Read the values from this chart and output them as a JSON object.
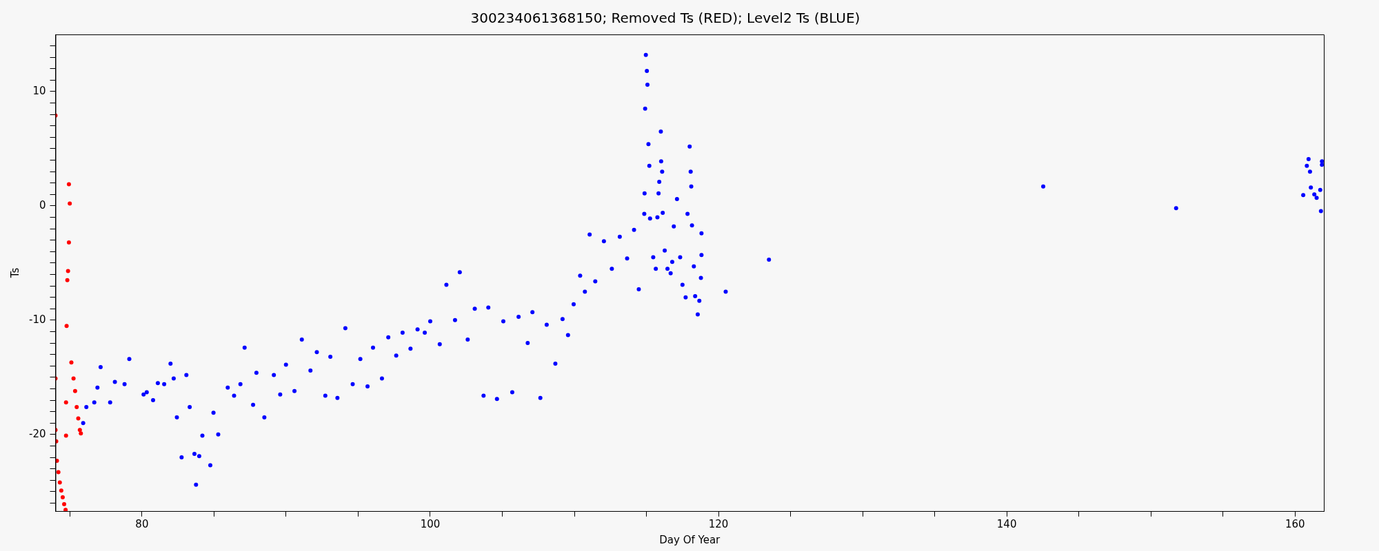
{
  "chart_data": {
    "type": "scatter",
    "title": "300234061368150; Removed Ts (RED); Level2 Ts (BLUE)",
    "xlabel": "Day Of Year",
    "ylabel": "Ts",
    "marker": "circle",
    "xlim": [
      74,
      162
    ],
    "ylim": [
      -26.7,
      15
    ],
    "xticks": [
      {
        "value": 75,
        "label": null
      },
      80,
      {
        "value": 85,
        "label": null
      },
      100,
      {
        "value": 105,
        "label": null
      },
      {
        "value": 90,
        "label": null
      },
      {
        "value": 95,
        "label": null
      },
      120,
      {
        "value": 110,
        "label": null
      },
      {
        "value": 115,
        "label": null
      },
      {
        "value": 125,
        "label": null
      },
      {
        "value": 130,
        "label": null
      },
      {
        "value": 135,
        "label": null
      },
      140,
      {
        "value": 145,
        "label": null
      },
      {
        "value": 150,
        "label": null
      },
      {
        "value": 155,
        "label": null
      },
      160
    ],
    "yticks": [
      {
        "value": -26,
        "label": null
      },
      {
        "value": -25,
        "label": null
      },
      {
        "value": -24,
        "label": null
      },
      {
        "value": -23,
        "label": null
      },
      {
        "value": -22,
        "label": null
      },
      {
        "value": -21,
        "label": null
      },
      -20,
      {
        "value": -19,
        "label": null
      },
      {
        "value": -18,
        "label": null
      },
      {
        "value": -17,
        "label": null
      },
      {
        "value": -16,
        "label": null
      },
      {
        "value": -15,
        "label": null
      },
      {
        "value": -14,
        "label": null
      },
      {
        "value": -13,
        "label": null
      },
      {
        "value": -12,
        "label": null
      },
      {
        "value": -11,
        "label": null
      },
      -10,
      {
        "value": -9,
        "label": null
      },
      {
        "value": -8,
        "label": null
      },
      {
        "value": -7,
        "label": null
      },
      {
        "value": -6,
        "label": null
      },
      {
        "value": -5,
        "label": null
      },
      {
        "value": -4,
        "label": null
      },
      {
        "value": -3,
        "label": null
      },
      {
        "value": -2,
        "label": null
      },
      {
        "value": -1,
        "label": null
      },
      0,
      {
        "value": 1,
        "label": null
      },
      {
        "value": 2,
        "label": null
      },
      {
        "value": 3,
        "label": null
      },
      {
        "value": 4,
        "label": null
      },
      {
        "value": 5,
        "label": null
      },
      {
        "value": 6,
        "label": null
      },
      {
        "value": 7,
        "label": null
      },
      {
        "value": 8,
        "label": null
      },
      {
        "value": 9,
        "label": null
      },
      10,
      {
        "value": 11,
        "label": null
      },
      {
        "value": 12,
        "label": null
      },
      {
        "value": 13,
        "label": null
      },
      {
        "value": 14,
        "label": null
      }
    ],
    "series": [
      {
        "color": "#ff0000",
        "x": [
          74.0,
          74.0,
          74.0,
          74.05,
          74.1,
          74.2,
          74.3,
          74.4,
          74.5,
          74.6,
          74.7,
          74.93,
          74.99,
          74.93,
          74.87,
          74.82,
          74.77,
          74.73,
          74.73,
          75.1,
          75.25,
          75.36,
          75.47,
          75.58,
          75.69,
          75.76
        ],
        "values": [
          7.9,
          -15.1,
          -19.6,
          -20.6,
          -22.3,
          -23.3,
          -24.2,
          -24.9,
          -25.5,
          -26.1,
          -26.6,
          1.9,
          0.2,
          -3.2,
          -5.7,
          -6.5,
          -10.5,
          -17.2,
          -20.1,
          -13.7,
          -15.1,
          -16.2,
          -17.6,
          -18.6,
          -19.6,
          -19.9
        ]
      },
      {
        "color": "#0000ff",
        "x": [
          75.92,
          76.14,
          76.69,
          76.91,
          77.13,
          77.79,
          78.12,
          78.79,
          79.12,
          80.11,
          80.33,
          80.77,
          81.1,
          81.54,
          81.98,
          82.2,
          82.42,
          82.75,
          83.08,
          83.31,
          83.64,
          83.75,
          83.97,
          84.19,
          84.74,
          84.96,
          85.29,
          85.95,
          86.39,
          86.83,
          87.12,
          87.71,
          87.94,
          88.49,
          89.15,
          89.59,
          89.99,
          90.58,
          91.09,
          91.69,
          92.13,
          92.72,
          93.07,
          93.56,
          94.11,
          94.62,
          95.15,
          95.65,
          96.03,
          96.65,
          97.09,
          97.64,
          98.08,
          98.63,
          99.12,
          99.62,
          100.0,
          100.66,
          101.12,
          101.72,
          102.05,
          102.6,
          103.09,
          103.7,
          104.03,
          104.63,
          105.07,
          105.69,
          106.13,
          106.76,
          107.09,
          107.64,
          108.08,
          108.68,
          109.18,
          109.56,
          109.95,
          110.4,
          110.73,
          111.06,
          111.45,
          112.05,
          112.6,
          113.15,
          113.66,
          114.14,
          114.47,
          114.85,
          114.87,
          114.91,
          114.96,
          115.03,
          115.07,
          115.14,
          115.2,
          115.25,
          115.47,
          115.65,
          115.76,
          115.84,
          115.89,
          116.0,
          116.02,
          116.09,
          116.13,
          116.27,
          116.46,
          116.68,
          116.79,
          116.9,
          117.12,
          117.34,
          117.5,
          117.72,
          117.85,
          118.0,
          118.07,
          118.11,
          118.16,
          118.29,
          118.38,
          118.56,
          118.67,
          118.78,
          118.82,
          118.82,
          120.5,
          123.5,
          142.53,
          151.75,
          160.57,
          160.82,
          160.94,
          161.04,
          161.1,
          161.34,
          161.5,
          161.75,
          161.8,
          161.87,
          161.87
        ],
        "values": [
          -19.0,
          -17.6,
          -17.2,
          -15.9,
          -14.1,
          -17.2,
          -15.4,
          -15.6,
          -13.4,
          -16.5,
          -16.3,
          -17.0,
          -15.5,
          -15.6,
          -13.8,
          -15.1,
          -18.5,
          -22.0,
          -14.8,
          -17.6,
          -21.7,
          -24.4,
          -21.9,
          -20.1,
          -22.7,
          -18.1,
          -20.0,
          -15.9,
          -16.6,
          -15.6,
          -12.4,
          -17.4,
          -14.6,
          -18.5,
          -14.8,
          -16.5,
          -13.9,
          -16.2,
          -11.7,
          -14.4,
          -12.8,
          -16.6,
          -13.2,
          -16.8,
          -10.7,
          -15.6,
          -13.4,
          -15.8,
          -12.4,
          -15.1,
          -11.5,
          -13.1,
          -11.1,
          -12.5,
          -10.8,
          -11.1,
          -10.1,
          -12.1,
          -6.9,
          -10.0,
          -5.8,
          -11.7,
          -9.0,
          -16.6,
          -8.9,
          -16.9,
          -10.1,
          -16.3,
          -9.7,
          -12.0,
          -9.3,
          -16.8,
          -10.4,
          -13.8,
          -9.9,
          -11.3,
          -8.6,
          -6.1,
          -7.5,
          -2.5,
          -6.6,
          -3.1,
          -5.5,
          -2.7,
          -4.6,
          -2.1,
          -7.3,
          -0.7,
          1.1,
          8.5,
          13.2,
          11.8,
          10.6,
          5.4,
          3.5,
          -1.1,
          -4.5,
          -5.5,
          -1.0,
          1.1,
          2.1,
          6.5,
          3.9,
          3.0,
          -0.6,
          -3.9,
          -5.5,
          -5.9,
          -4.9,
          -1.8,
          0.6,
          -4.5,
          -6.9,
          -8.0,
          -0.7,
          5.2,
          3.0,
          1.7,
          -1.7,
          -5.3,
          -7.9,
          -9.5,
          -8.3,
          -6.3,
          -4.3,
          -2.4,
          -7.5,
          -4.7,
          1.7,
          -0.2,
          0.95,
          3.5,
          4.1,
          3.0,
          1.6,
          1.0,
          0.7,
          1.4,
          -0.45,
          3.9,
          3.6
        ]
      }
    ]
  }
}
